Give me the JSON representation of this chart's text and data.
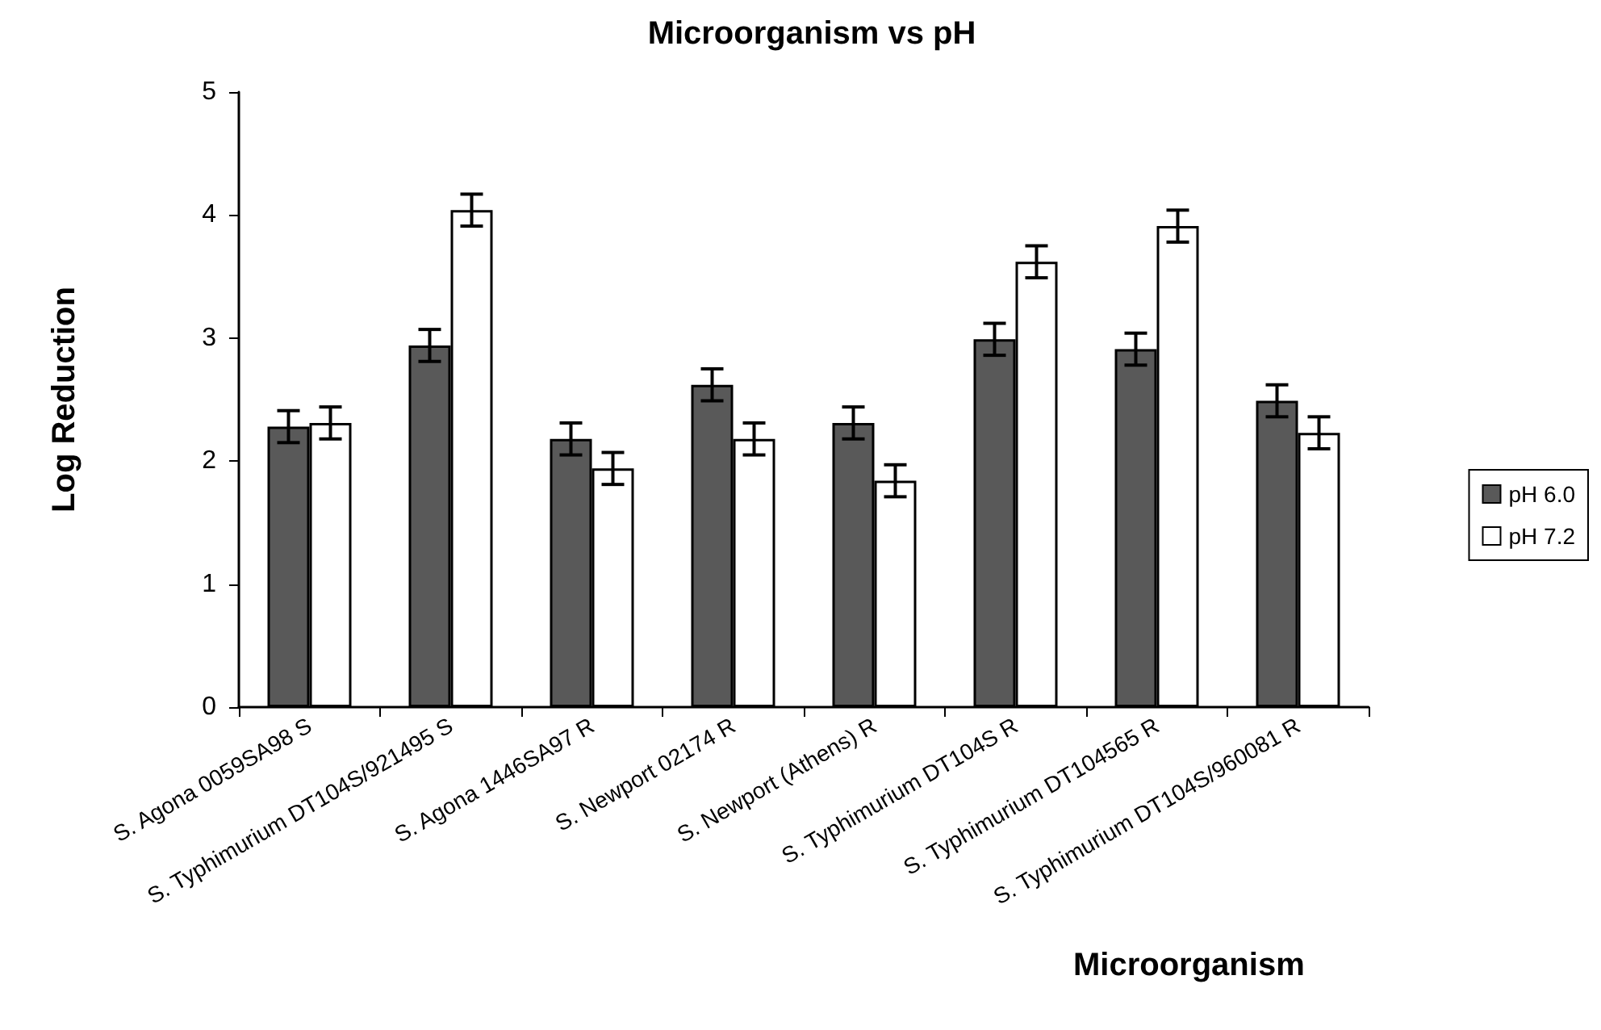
{
  "chart_data": {
    "type": "bar",
    "title": "Microorganism vs pH",
    "xlabel": "Microorganism",
    "ylabel": "Log Reduction",
    "categories": [
      "S. Agona 0059SA98 S",
      "S. Typhimurium DT104S/921495 S",
      "S. Agona 1446SA97 R",
      "S. Newport 02174 R",
      "S. Newport (Athens) R",
      "S. Typhimurium DT104S R",
      "S. Typhimurium DT104565 R",
      "S. Typhimurium DT104S/960081 R"
    ],
    "series": [
      {
        "name": "pH 6.0",
        "color": "#595959",
        "values": [
          2.28,
          2.94,
          2.18,
          2.62,
          2.31,
          2.99,
          2.91,
          2.49
        ],
        "errors": [
          0.13,
          0.13,
          0.13,
          0.13,
          0.13,
          0.13,
          0.13,
          0.13
        ]
      },
      {
        "name": "pH 7.2",
        "color": "#ffffff",
        "values": [
          2.31,
          4.04,
          1.94,
          2.18,
          1.84,
          3.62,
          3.91,
          2.23
        ],
        "errors": [
          0.13,
          0.13,
          0.13,
          0.13,
          0.13,
          0.13,
          0.13,
          0.13
        ]
      }
    ],
    "ylim": [
      0,
      5
    ],
    "yticks": [
      0,
      1,
      2,
      3,
      4,
      5
    ],
    "grid": false,
    "legend": "right"
  }
}
